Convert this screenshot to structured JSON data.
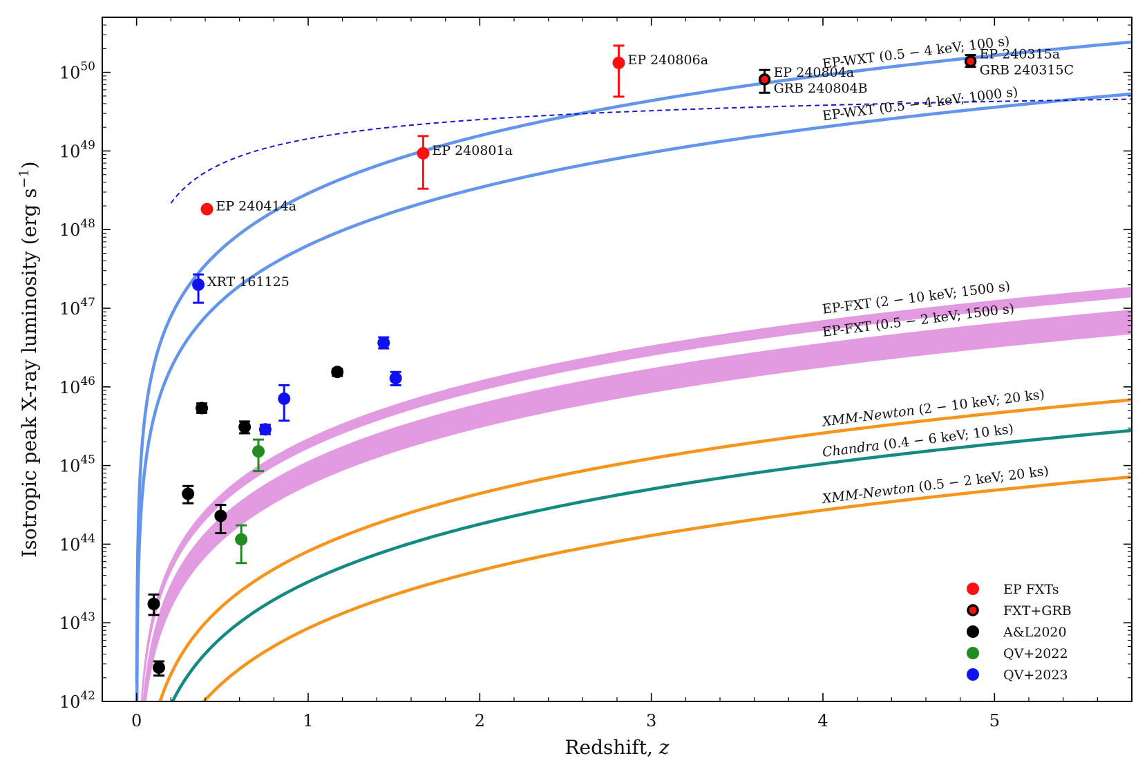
{
  "chart_data": {
    "type": "scatter",
    "title": "",
    "xlabel": "Redshift, z",
    "ylabel": "Isotropic peak X-ray luminosity (erg s^-1)",
    "xlim": [
      -0.2,
      5.8
    ],
    "ylim_log10": [
      42,
      50.7
    ],
    "y_scale": "log",
    "x_ticks": [
      {
        "value": 0,
        "label": "0"
      },
      {
        "value": 1,
        "label": "1"
      },
      {
        "value": 2,
        "label": "2"
      },
      {
        "value": 3,
        "label": "3"
      },
      {
        "value": 4,
        "label": "4"
      },
      {
        "value": 5,
        "label": "5"
      }
    ],
    "y_ticks": [
      {
        "exp": 42,
        "base": "10",
        "power": "42"
      },
      {
        "exp": 43,
        "base": "10",
        "power": "43"
      },
      {
        "exp": 44,
        "base": "10",
        "power": "44"
      },
      {
        "exp": 45,
        "base": "10",
        "power": "45"
      },
      {
        "exp": 46,
        "base": "10",
        "power": "46"
      },
      {
        "exp": 47,
        "base": "10",
        "power": "47"
      },
      {
        "exp": 48,
        "base": "10",
        "power": "48"
      },
      {
        "exp": 49,
        "base": "10",
        "power": "49"
      },
      {
        "exp": 50,
        "base": "10",
        "power": "50"
      }
    ],
    "curves": [
      {
        "name": "EP-WXT (0.5 – 4 keV; 100 s)",
        "label_parts": [
          "EP-WXT (0.5 − 4 keV; 100 s)"
        ],
        "italic_prefix": "",
        "rest": "EP-WXT (0.5 − 4 keV; 100 s)",
        "type": "line",
        "color": "#6495ED",
        "y_at_z1": 48.46,
        "label_z": 4.0
      },
      {
        "name": "EP-WXT (0.5 – 4 keV; 1000 s)",
        "italic_prefix": "",
        "rest": "EP-WXT (0.5 − 4 keV; 1000 s)",
        "type": "line",
        "color": "#6495ED",
        "y_at_z1": 47.8,
        "label_z": 4.0
      },
      {
        "name": "EP-FXT (2 – 10 keV; 1500 s)",
        "italic_prefix": "",
        "rest": "EP-FXT (2 − 10 keV; 1500 s)",
        "type": "band",
        "color": "#E29BE0",
        "y_at_z1": 45.28,
        "width_dex": 0.12,
        "label_z": 4.0
      },
      {
        "name": "EP-FXT (0.5 – 2 keV; 1500 s)",
        "italic_prefix": "",
        "rest": "EP-FXT (0.5 − 2 keV; 1500 s)",
        "type": "band",
        "color": "#E29BE0",
        "y_at_z1": 44.9,
        "width_dex": 0.3,
        "label_z": 4.0
      },
      {
        "name": "XMM-Newton (2 – 10 keV; 20 ks)",
        "italic_prefix": "XMM-Newton",
        "rest": " (2 − 10 keV; 20 ks)",
        "type": "line",
        "color": "#F7941D",
        "y_at_z1": 43.91,
        "label_z": 4.0
      },
      {
        "name": "Chandra (0.4 – 6 keV; 10 ks)",
        "italic_prefix": "Chandra",
        "rest": " (0.4 − 6 keV; 10 ks)",
        "type": "line",
        "color": "#148A80",
        "y_at_z1": 43.52,
        "label_z": 4.0
      },
      {
        "name": "XMM-Newton (0.5 – 2 keV; 20 ks)",
        "italic_prefix": "XMM-Newton",
        "rest": " (0.5 − 2 keV; 20 ks)",
        "type": "line",
        "color": "#F7941D",
        "y_at_z1": 42.93,
        "label_z": 4.0
      }
    ],
    "dashed_trend": {
      "color": "#1515D6",
      "x_start": 0.2,
      "x_end": 5.8,
      "a": 49.08,
      "b": 3.2
    },
    "series": [
      {
        "name": "EP FXTs",
        "color": "#FF1010",
        "edge": null,
        "points": [
          {
            "x": 0.41,
            "y": 48.26,
            "ylo": 48.26,
            "yhi": 48.26,
            "label": "EP 240414a"
          },
          {
            "x": 1.67,
            "y": 48.97,
            "ylo": 48.52,
            "yhi": 49.19,
            "label": "EP 240801a"
          },
          {
            "x": 2.81,
            "y": 50.12,
            "ylo": 49.69,
            "yhi": 50.34,
            "label": "EP 240806a"
          }
        ]
      },
      {
        "name": "FXT+GRB",
        "color": "#FF1010",
        "edge": "#000000",
        "points": [
          {
            "x": 3.66,
            "y": 49.91,
            "ylo": 49.74,
            "yhi": 50.03,
            "label": "EP 240804a",
            "label2": "GRB 240804B"
          },
          {
            "x": 4.86,
            "y": 50.14,
            "ylo": 50.07,
            "yhi": 50.22,
            "label": "EP 240315a",
            "label2": "GRB 240315C"
          }
        ]
      },
      {
        "name": "A&L2020",
        "color": "#000000",
        "edge": null,
        "points": [
          {
            "x": 0.1,
            "y": 43.24,
            "ylo": 43.1,
            "yhi": 43.36
          },
          {
            "x": 0.13,
            "y": 42.43,
            "ylo": 42.33,
            "yhi": 42.51
          },
          {
            "x": 0.3,
            "y": 44.64,
            "ylo": 44.52,
            "yhi": 44.74
          },
          {
            "x": 0.38,
            "y": 45.73,
            "ylo": 45.67,
            "yhi": 45.79
          },
          {
            "x": 0.49,
            "y": 44.36,
            "ylo": 44.14,
            "yhi": 44.5
          },
          {
            "x": 0.63,
            "y": 45.49,
            "ylo": 45.41,
            "yhi": 45.56
          },
          {
            "x": 1.17,
            "y": 46.19,
            "ylo": 46.14,
            "yhi": 46.23
          }
        ]
      },
      {
        "name": "QV+2022",
        "color": "#228B22",
        "edge": null,
        "points": [
          {
            "x": 0.61,
            "y": 44.06,
            "ylo": 43.76,
            "yhi": 44.24
          },
          {
            "x": 0.71,
            "y": 45.18,
            "ylo": 44.93,
            "yhi": 45.33
          }
        ]
      },
      {
        "name": "QV+2023",
        "color": "#1010F0",
        "edge": null,
        "points": [
          {
            "x": 0.36,
            "y": 47.3,
            "ylo": 47.07,
            "yhi": 47.43,
            "label": "XRT 161125"
          },
          {
            "x": 0.75,
            "y": 45.46,
            "ylo": 45.4,
            "yhi": 45.52
          },
          {
            "x": 0.86,
            "y": 45.85,
            "ylo": 45.57,
            "yhi": 46.02
          },
          {
            "x": 1.44,
            "y": 46.56,
            "ylo": 46.49,
            "yhi": 46.63
          },
          {
            "x": 1.51,
            "y": 46.11,
            "ylo": 46.02,
            "yhi": 46.19
          }
        ]
      }
    ],
    "legend": {
      "placement": "bottom-right",
      "entries": [
        {
          "label": "EP FXTs",
          "color": "#FF1010",
          "edge": null
        },
        {
          "label": "FXT+GRB",
          "color": "#FF1010",
          "edge": "#000000"
        },
        {
          "label": "A&L2020",
          "color": "#000000",
          "edge": null
        },
        {
          "label": "QV+2022",
          "color": "#228B22",
          "edge": null
        },
        {
          "label": "QV+2023",
          "color": "#1010F0",
          "edge": null
        }
      ]
    }
  }
}
